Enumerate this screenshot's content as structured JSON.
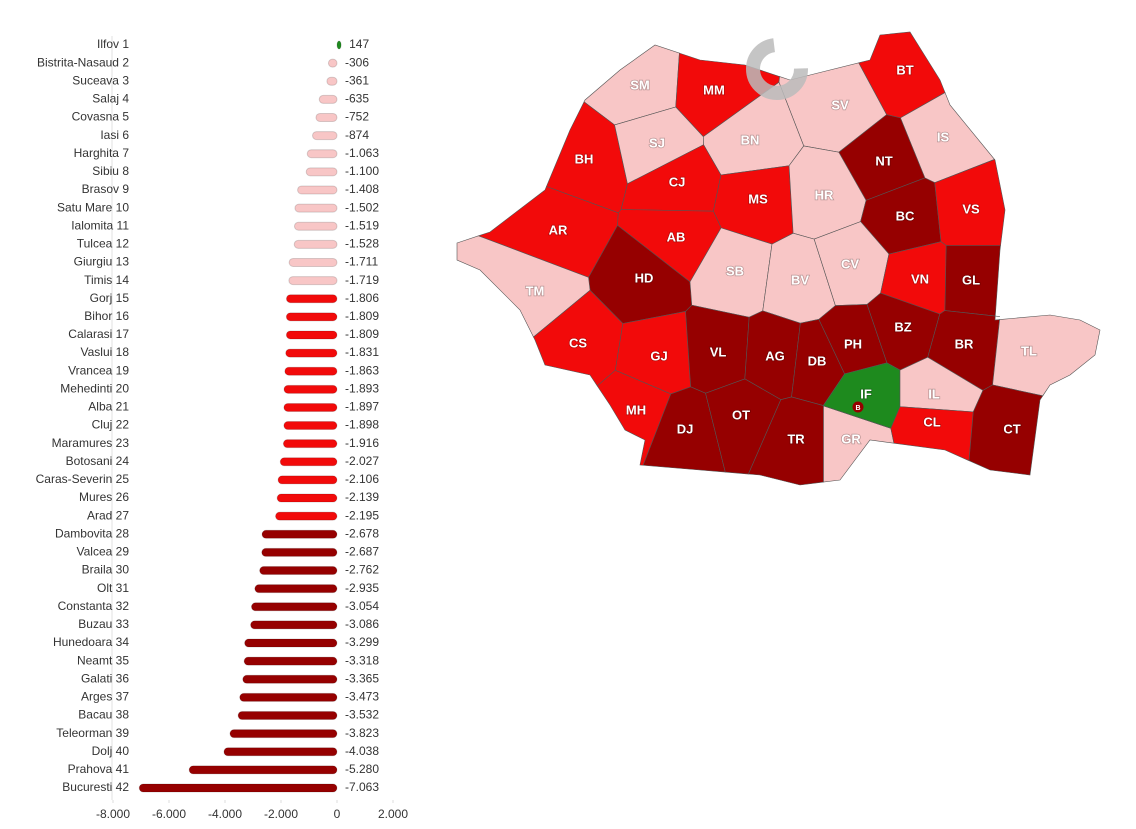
{
  "chart_data": {
    "type": "bar",
    "orientation": "horizontal",
    "categories": [
      "Ilfov 1",
      "Bistrita-Nasaud 2",
      "Suceava 3",
      "Salaj 4",
      "Covasna 5",
      "Iasi 6",
      "Harghita 7",
      "Sibiu 8",
      "Brasov 9",
      "Satu Mare 10",
      "Ialomita 11",
      "Tulcea 12",
      "Giurgiu 13",
      "Timis 14",
      "Gorj 15",
      "Bihor 16",
      "Calarasi 17",
      "Vaslui 18",
      "Vrancea 19",
      "Mehedinti 20",
      "Alba 21",
      "Cluj 22",
      "Maramures 23",
      "Botosani 24",
      "Caras-Severin 25",
      "Mures 26",
      "Arad 27",
      "Dambovita 28",
      "Valcea 29",
      "Braila 30",
      "Olt 31",
      "Constanta 32",
      "Buzau 33",
      "Hunedoara 34",
      "Neamt 35",
      "Galati 36",
      "Arges 37",
      "Bacau 38",
      "Teleorman 39",
      "Dolj 40",
      "Prahova 41",
      "Bucuresti 42"
    ],
    "values": [
      147,
      -306,
      -361,
      -635,
      -752,
      -874,
      -1063,
      -1100,
      -1408,
      -1502,
      -1519,
      -1528,
      -1711,
      -1719,
      -1806,
      -1809,
      -1809,
      -1831,
      -1863,
      -1893,
      -1897,
      -1898,
      -1916,
      -2027,
      -2106,
      -2139,
      -2195,
      -2678,
      -2687,
      -2762,
      -2935,
      -3054,
      -3086,
      -3299,
      -3318,
      -3365,
      -3473,
      -3532,
      -3823,
      -4038,
      -5280,
      -7063
    ],
    "value_labels": [
      "147",
      "-306",
      "-361",
      "-635",
      "-752",
      "-874",
      "-1.063",
      "-1.100",
      "-1.408",
      "-1.502",
      "-1.519",
      "-1.528",
      "-1.711",
      "-1.719",
      "-1.806",
      "-1.809",
      "-1.809",
      "-1.831",
      "-1.863",
      "-1.893",
      "-1.897",
      "-1.898",
      "-1.916",
      "-2.027",
      "-2.106",
      "-2.139",
      "-2.195",
      "-2.678",
      "-2.687",
      "-2.762",
      "-2.935",
      "-3.054",
      "-3.086",
      "-3.299",
      "-3.318",
      "-3.365",
      "-3.473",
      "-3.532",
      "-3.823",
      "-4.038",
      "-5.280",
      "-7.063"
    ],
    "colors": [
      "#1e8a1e",
      "#f8c6c6",
      "#f8c6c6",
      "#f8c6c6",
      "#f8c6c6",
      "#f8c6c6",
      "#f8c6c6",
      "#f8c6c6",
      "#f8c6c6",
      "#f8c6c6",
      "#f8c6c6",
      "#f8c6c6",
      "#f8c6c6",
      "#f8c6c6",
      "#f20a0a",
      "#f20a0a",
      "#f20a0a",
      "#f20a0a",
      "#f20a0a",
      "#f20a0a",
      "#f20a0a",
      "#f20a0a",
      "#f20a0a",
      "#f20a0a",
      "#f20a0a",
      "#f20a0a",
      "#f20a0a",
      "#960000",
      "#960000",
      "#960000",
      "#960000",
      "#960000",
      "#960000",
      "#960000",
      "#960000",
      "#960000",
      "#960000",
      "#960000",
      "#960000",
      "#960000",
      "#960000",
      "#960000"
    ],
    "xlim": [
      -8000,
      2000
    ],
    "xticks": [
      {
        "value": -8000,
        "label": "-8.000"
      },
      {
        "value": -6000,
        "label": "-6.000"
      },
      {
        "value": -4000,
        "label": "-4.000"
      },
      {
        "value": -2000,
        "label": "-2.000"
      },
      0,
      {
        "value": 2000,
        "label": "2.000"
      }
    ]
  },
  "map": {
    "regions": [
      {
        "code": "SM",
        "color": "#f8c6c6"
      },
      {
        "code": "MM",
        "color": "#f20a0a"
      },
      {
        "code": "BT",
        "color": "#f20a0a"
      },
      {
        "code": "SV",
        "color": "#f8c6c6"
      },
      {
        "code": "BH",
        "color": "#f20a0a"
      },
      {
        "code": "SJ",
        "color": "#f8c6c6"
      },
      {
        "code": "BN",
        "color": "#f8c6c6"
      },
      {
        "code": "IS",
        "color": "#f8c6c6"
      },
      {
        "code": "NT",
        "color": "#960000"
      },
      {
        "code": "CJ",
        "color": "#f20a0a"
      },
      {
        "code": "MS",
        "color": "#f20a0a"
      },
      {
        "code": "HR",
        "color": "#f8c6c6"
      },
      {
        "code": "BC",
        "color": "#960000"
      },
      {
        "code": "VS",
        "color": "#f20a0a"
      },
      {
        "code": "AR",
        "color": "#f20a0a"
      },
      {
        "code": "AB",
        "color": "#f20a0a"
      },
      {
        "code": "HD",
        "color": "#960000"
      },
      {
        "code": "SB",
        "color": "#f8c6c6"
      },
      {
        "code": "BV",
        "color": "#f8c6c6"
      },
      {
        "code": "CV",
        "color": "#f8c6c6"
      },
      {
        "code": "VN",
        "color": "#f20a0a"
      },
      {
        "code": "GL",
        "color": "#960000"
      },
      {
        "code": "TM",
        "color": "#f8c6c6"
      },
      {
        "code": "CS",
        "color": "#f20a0a"
      },
      {
        "code": "GJ",
        "color": "#f20a0a"
      },
      {
        "code": "VL",
        "color": "#960000"
      },
      {
        "code": "AG",
        "color": "#960000"
      },
      {
        "code": "DB",
        "color": "#960000"
      },
      {
        "code": "PH",
        "color": "#960000"
      },
      {
        "code": "BZ",
        "color": "#960000"
      },
      {
        "code": "BR",
        "color": "#960000"
      },
      {
        "code": "TL",
        "color": "#f8c6c6"
      },
      {
        "code": "MH",
        "color": "#f20a0a"
      },
      {
        "code": "DJ",
        "color": "#960000"
      },
      {
        "code": "OT",
        "color": "#960000"
      },
      {
        "code": "TR",
        "color": "#960000"
      },
      {
        "code": "GR",
        "color": "#f8c6c6"
      },
      {
        "code": "IF",
        "color": "#1e8a1e"
      },
      {
        "code": "IL",
        "color": "#f8c6c6"
      },
      {
        "code": "CL",
        "color": "#f20a0a"
      },
      {
        "code": "CT",
        "color": "#960000"
      }
    ],
    "bucharest_label": "B"
  }
}
